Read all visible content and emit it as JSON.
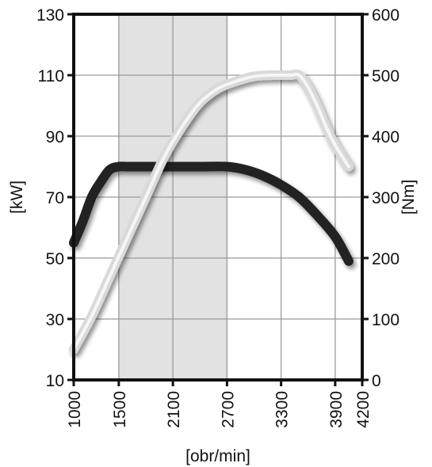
{
  "chart_data": {
    "type": "line",
    "title": "",
    "xlabel": "[obr/min]",
    "ylabel_left": "[kW]",
    "ylabel_right": "[Nm]",
    "x_ticks": [
      "1000",
      "1500",
      "2100",
      "2700",
      "3300",
      "3900",
      "4200"
    ],
    "x_tick_values": [
      1000,
      1500,
      2100,
      2700,
      3300,
      3900,
      4200
    ],
    "y_left_ticks": [
      "10",
      "30",
      "50",
      "70",
      "90",
      "110",
      "130"
    ],
    "y_left_tick_values": [
      10,
      30,
      50,
      70,
      90,
      110,
      130
    ],
    "y_right_ticks": [
      "0",
      "100",
      "200",
      "300",
      "400",
      "500",
      "600"
    ],
    "y_right_tick_values": [
      0,
      100,
      200,
      300,
      400,
      500,
      600
    ],
    "xlim": [
      1000,
      4200
    ],
    "ylim_left": [
      10,
      130
    ],
    "ylim_right": [
      0,
      600
    ],
    "grid": true,
    "highlight_band_x": [
      1500,
      2700
    ],
    "series": [
      {
        "axis": "left",
        "color": "#222222",
        "points": [
          [
            1000,
            55
          ],
          [
            1100,
            62
          ],
          [
            1200,
            70
          ],
          [
            1300,
            75
          ],
          [
            1400,
            79
          ],
          [
            1500,
            80
          ],
          [
            1600,
            80
          ],
          [
            1800,
            80
          ],
          [
            2100,
            80
          ],
          [
            2400,
            80
          ],
          [
            2700,
            80
          ],
          [
            2900,
            79
          ],
          [
            3100,
            77
          ],
          [
            3300,
            74
          ],
          [
            3500,
            70
          ],
          [
            3700,
            64
          ],
          [
            3900,
            57
          ],
          [
            4050,
            49
          ]
        ]
      },
      {
        "axis": "right",
        "color": "#d9d9d9",
        "points": [
          [
            1000,
            50
          ],
          [
            1200,
            105
          ],
          [
            1400,
            170
          ],
          [
            1600,
            235
          ],
          [
            1800,
            300
          ],
          [
            2000,
            365
          ],
          [
            2200,
            415
          ],
          [
            2400,
            455
          ],
          [
            2600,
            478
          ],
          [
            2800,
            490
          ],
          [
            3000,
            498
          ],
          [
            3200,
            500
          ],
          [
            3400,
            500
          ],
          [
            3500,
            500
          ],
          [
            3600,
            480
          ],
          [
            3700,
            450
          ],
          [
            3800,
            415
          ],
          [
            3900,
            385
          ],
          [
            4050,
            350
          ]
        ]
      }
    ]
  }
}
